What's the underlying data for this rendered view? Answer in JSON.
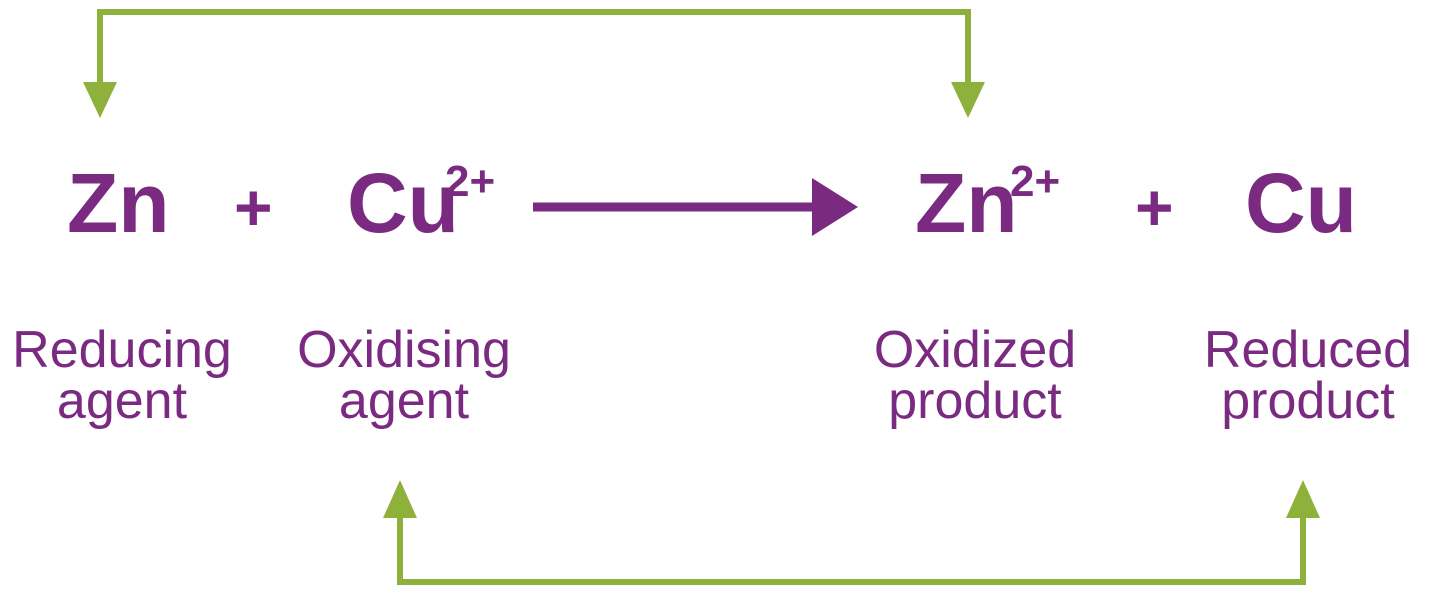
{
  "equation": {
    "reactant_1": {
      "symbol": "Zn",
      "charge": "",
      "role_line1": "Reducing",
      "role_line2": "agent"
    },
    "plus_1": "+",
    "reactant_2": {
      "symbol": "Cu",
      "charge": "2+",
      "role_line1": "Oxidising",
      "role_line2": "agent"
    },
    "product_1": {
      "symbol": "Zn",
      "charge": "2+",
      "role_line1": "Oxidized",
      "role_line2": "product"
    },
    "plus_2": "+",
    "product_2": {
      "symbol": "Cu",
      "charge": "",
      "role_line1": "Reduced",
      "role_line2": "product"
    }
  },
  "colors": {
    "text": "#7a2a80",
    "connector": "#8db13a"
  }
}
